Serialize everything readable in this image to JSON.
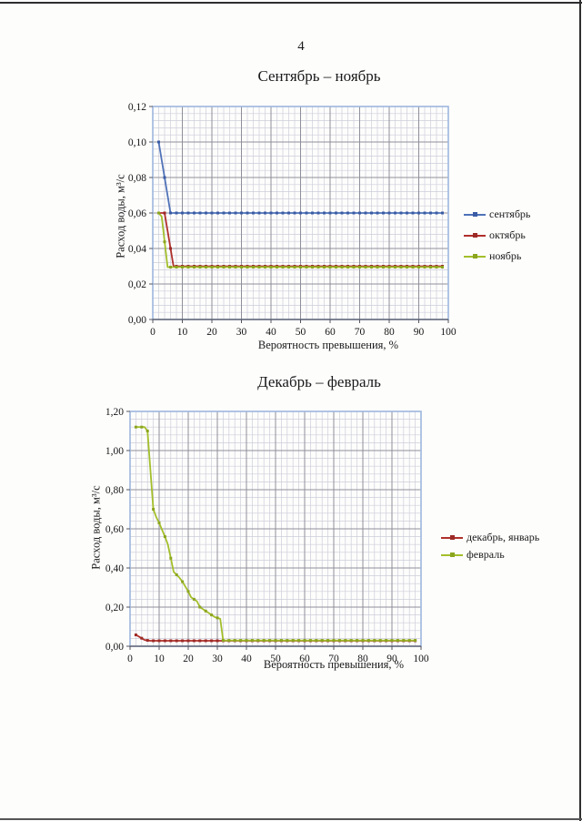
{
  "page": {
    "number": "4"
  },
  "chart_data": [
    {
      "type": "line",
      "title": "Сентябрь – ноябрь",
      "xlabel": "Вероятность превышения, %",
      "ylabel": "Расход воды, м³/с",
      "xlim": [
        0,
        100
      ],
      "ylim": [
        0,
        0.12
      ],
      "x_major": 10,
      "x_minor": 2,
      "y_major": 0.02,
      "y_minor": 0.004,
      "grid": "major+minor",
      "legend_position": "right",
      "x_tick_labels": [
        "0",
        "10",
        "20",
        "30",
        "40",
        "50",
        "60",
        "70",
        "80",
        "90",
        "100"
      ],
      "y_tick_labels": [
        "0,00",
        "0,02",
        "0,04",
        "0,06",
        "0,08",
        "0,10",
        "0,12"
      ],
      "marker_step": 2,
      "series": [
        {
          "name": "сентябрь",
          "color": "#4f72b8",
          "marker_color": "#3a5ca5",
          "points": [
            [
              2,
              0.1
            ],
            [
              6,
              0.06
            ],
            [
              98,
              0.06
            ]
          ]
        },
        {
          "name": "октябрь",
          "color": "#b0302c",
          "marker_color": "#9c2a26",
          "points": [
            [
              2,
              0.06
            ],
            [
              4,
              0.06
            ],
            [
              7,
              0.03
            ],
            [
              98,
              0.03
            ]
          ]
        },
        {
          "name": "ноябрь",
          "color": "#a3bf2b",
          "marker_color": "#8ba51f",
          "points": [
            [
              2,
              0.06
            ],
            [
              3,
              0.058
            ],
            [
              5,
              0.0295
            ],
            [
              98,
              0.0295
            ]
          ]
        }
      ]
    },
    {
      "type": "line",
      "title": "Декабрь – февраль",
      "xlabel": "Вероятность превышения, %",
      "ylabel": "Расход воды, м³/с",
      "xlim": [
        0,
        100
      ],
      "ylim": [
        0,
        1.2
      ],
      "x_major": 10,
      "x_minor": 2,
      "y_major": 0.2,
      "y_minor": 0.04,
      "grid": "major+minor",
      "legend_position": "right",
      "x_tick_labels": [
        "0",
        "10",
        "20",
        "30",
        "40",
        "50",
        "60",
        "70",
        "80",
        "90",
        "100"
      ],
      "y_tick_labels": [
        "0,00",
        "0,20",
        "0,40",
        "0,60",
        "0,80",
        "1,00",
        "1,20"
      ],
      "marker_step": 2,
      "series": [
        {
          "name": "декабрь, январь",
          "color": "#b0302c",
          "marker_color": "#9c2a26",
          "points": [
            [
              2,
              0.058
            ],
            [
              3,
              0.05
            ],
            [
              5,
              0.032
            ],
            [
              7,
              0.028
            ],
            [
              98,
              0.028
            ]
          ]
        },
        {
          "name": "февраль",
          "color": "#a3bf2b",
          "marker_color": "#8ba51f",
          "points": [
            [
              2,
              1.12
            ],
            [
              5,
              1.12
            ],
            [
              6,
              1.1
            ],
            [
              8,
              0.7
            ],
            [
              9,
              0.66
            ],
            [
              10,
              0.63
            ],
            [
              12,
              0.56
            ],
            [
              13,
              0.52
            ],
            [
              15,
              0.38
            ],
            [
              17,
              0.35
            ],
            [
              18,
              0.33
            ],
            [
              20,
              0.28
            ],
            [
              21,
              0.25
            ],
            [
              23,
              0.23
            ],
            [
              24,
              0.2
            ],
            [
              26,
              0.18
            ],
            [
              27,
              0.17
            ],
            [
              29,
              0.15
            ],
            [
              31,
              0.14
            ],
            [
              32,
              0.03
            ],
            [
              98,
              0.03
            ]
          ]
        }
      ]
    }
  ],
  "style": {
    "grid_major_color": "#8f8f9a",
    "grid_minor_color": "#cdcdda",
    "plot_border_color": "#9db7de",
    "axis_color": "#55555f"
  }
}
